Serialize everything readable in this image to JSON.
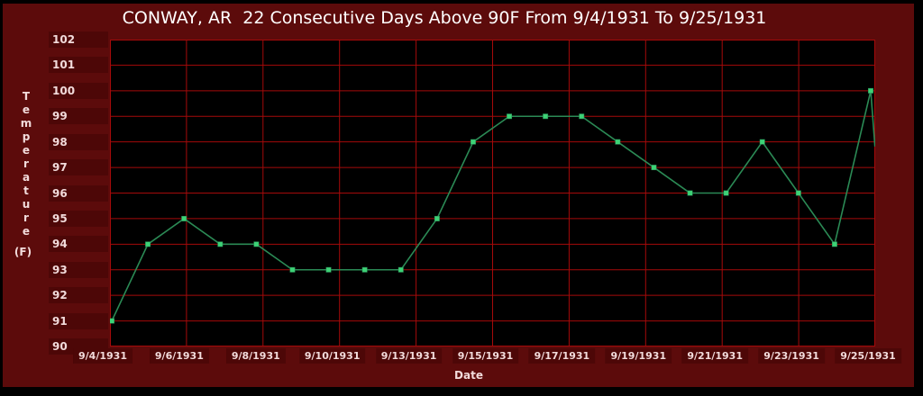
{
  "chart_data": {
    "type": "line",
    "title": "CONWAY, AR  22 Consecutive Days Above 90F From 9/4/1931 To 9/25/1931",
    "xlabel": "Date",
    "ylabel": "Temperature",
    "ylabel_unit": "(F)",
    "ylim": [
      90,
      102
    ],
    "y_tick_labels": [
      "90",
      "91",
      "92",
      "93",
      "94",
      "95",
      "96",
      "97",
      "98",
      "99",
      "100",
      "101",
      "102"
    ],
    "x_tick_labels": [
      "9/4/1931",
      "9/6/1931",
      "9/8/1931",
      "9/10/1931",
      "9/13/1931",
      "9/15/1931",
      "9/17/1931",
      "9/19/1931",
      "9/21/1931",
      "9/23/1931",
      "9/25/1931"
    ],
    "x": [
      "9/4/1931",
      "9/5/1931",
      "9/6/1931",
      "9/7/1931",
      "9/8/1931",
      "9/9/1931",
      "9/10/1931",
      "9/11/1931",
      "9/12/1931",
      "9/13/1931",
      "9/14/1931",
      "9/15/1931",
      "9/16/1931",
      "9/17/1931",
      "9/18/1931",
      "9/19/1931",
      "9/20/1931",
      "9/21/1931",
      "9/22/1931",
      "9/23/1931",
      "9/24/1931",
      "9/25/1931"
    ],
    "values": [
      91,
      94,
      95,
      94,
      94,
      93,
      93,
      93,
      93,
      95,
      98,
      99,
      99,
      99,
      98,
      97,
      96,
      96,
      98,
      96,
      94,
      100
    ],
    "grid": true,
    "legend": false,
    "line_descends_past_right_edge": true,
    "colors": {
      "background": "#5c0b0b",
      "frame_border": "#000000",
      "plot_background": "#000000",
      "gridline": "#a50a0a",
      "line": "#2b8a55",
      "marker": "#3dd276",
      "title_text": "#ffffff",
      "label_text": "#f2dbdb",
      "label_box": "#4d0707"
    }
  }
}
